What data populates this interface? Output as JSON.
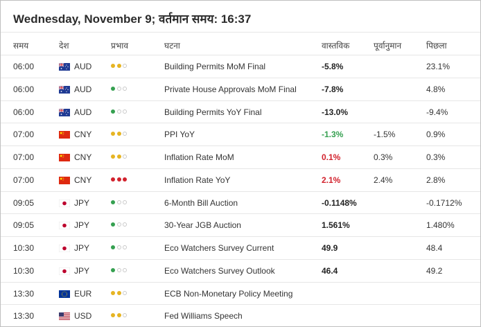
{
  "header": {
    "title": "Wednesday, November 9; वर्तमान समय: 16:37"
  },
  "columns": {
    "time": "समय",
    "country": "देश",
    "impact": "प्रभाव",
    "event": "घटना",
    "actual": "वास्तविक",
    "forecast": "पूर्वानुमान",
    "previous": "पिछला"
  },
  "colors": {
    "impact_low": "#35a050",
    "impact_medium": "#e6b422",
    "impact_high": "#d2222d",
    "impact_empty": "#c9c9c9",
    "actual_green": "#35a050",
    "actual_red": "#d2222d"
  },
  "rows": [
    {
      "time": "06:00",
      "currency": "AUD",
      "flag": "au-flag-icon",
      "impact": "medium",
      "event": "Building Permits MoM Final",
      "actual": "-5.8%",
      "actual_color": "dark",
      "forecast": "",
      "previous": "23.1%"
    },
    {
      "time": "06:00",
      "currency": "AUD",
      "flag": "au-flag-icon",
      "impact": "low",
      "event": "Private House Approvals MoM Final",
      "actual": "-7.8%",
      "actual_color": "dark",
      "forecast": "",
      "previous": "4.8%"
    },
    {
      "time": "06:00",
      "currency": "AUD",
      "flag": "au-flag-icon",
      "impact": "low",
      "event": "Building Permits YoY Final",
      "actual": "-13.0%",
      "actual_color": "dark",
      "forecast": "",
      "previous": "-9.4%"
    },
    {
      "time": "07:00",
      "currency": "CNY",
      "flag": "cn-flag-icon",
      "impact": "medium",
      "event": "PPI YoY",
      "actual": "-1.3%",
      "actual_color": "green",
      "forecast": "-1.5%",
      "previous": "0.9%"
    },
    {
      "time": "07:00",
      "currency": "CNY",
      "flag": "cn-flag-icon",
      "impact": "medium",
      "event": "Inflation Rate MoM",
      "actual": "0.1%",
      "actual_color": "red",
      "forecast": "0.3%",
      "previous": "0.3%"
    },
    {
      "time": "07:00",
      "currency": "CNY",
      "flag": "cn-flag-icon",
      "impact": "high",
      "event": "Inflation Rate YoY",
      "actual": "2.1%",
      "actual_color": "red",
      "forecast": "2.4%",
      "previous": "2.8%"
    },
    {
      "time": "09:05",
      "currency": "JPY",
      "flag": "jp-flag-icon",
      "impact": "low",
      "event": "6-Month Bill Auction",
      "actual": "-0.1148%",
      "actual_color": "dark",
      "forecast": "",
      "previous": "-0.1712%"
    },
    {
      "time": "09:05",
      "currency": "JPY",
      "flag": "jp-flag-icon",
      "impact": "low",
      "event": "30-Year JGB Auction",
      "actual": "1.561%",
      "actual_color": "dark",
      "forecast": "",
      "previous": "1.480%"
    },
    {
      "time": "10:30",
      "currency": "JPY",
      "flag": "jp-flag-icon",
      "impact": "low",
      "event": "Eco Watchers Survey Current",
      "actual": "49.9",
      "actual_color": "dark",
      "forecast": "",
      "previous": "48.4"
    },
    {
      "time": "10:30",
      "currency": "JPY",
      "flag": "jp-flag-icon",
      "impact": "low",
      "event": "Eco Watchers Survey Outlook",
      "actual": "46.4",
      "actual_color": "dark",
      "forecast": "",
      "previous": "49.2"
    },
    {
      "time": "13:30",
      "currency": "EUR",
      "flag": "eu-flag-icon",
      "impact": "medium",
      "event": "ECB Non-Monetary Policy Meeting",
      "actual": "",
      "actual_color": "dark",
      "forecast": "",
      "previous": ""
    },
    {
      "time": "13:30",
      "currency": "USD",
      "flag": "us-flag-icon",
      "impact": "medium",
      "event": "Fed Williams Speech",
      "actual": "",
      "actual_color": "dark",
      "forecast": "",
      "previous": ""
    }
  ]
}
